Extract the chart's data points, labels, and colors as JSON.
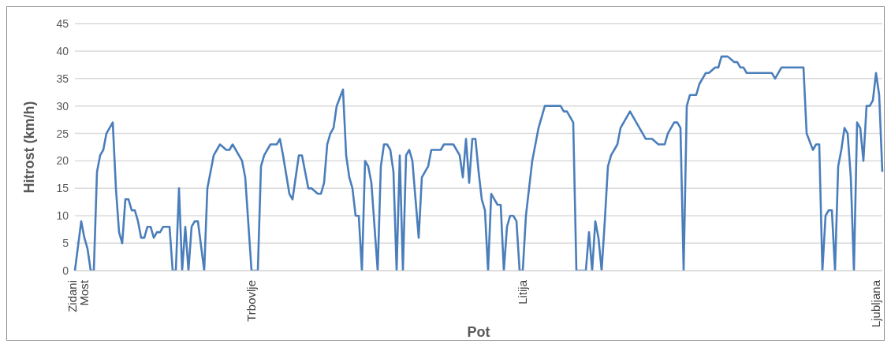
{
  "chart_data": {
    "type": "line",
    "xlabel": "Pot",
    "ylabel": "Hitrost (km/h)",
    "categories": [
      null,
      "Zidani Most",
      null,
      null,
      null,
      null,
      null,
      null,
      null,
      null,
      null,
      null,
      null,
      null,
      null,
      null,
      null,
      null,
      null,
      null,
      null,
      null,
      null,
      null,
      null,
      null,
      null,
      null,
      null,
      null,
      null,
      null,
      null,
      null,
      null,
      null,
      null,
      null,
      null,
      null,
      null,
      null,
      null,
      null,
      null,
      null,
      null,
      null,
      null,
      null,
      null,
      null,
      null,
      null,
      null,
      null,
      "Trbovlje",
      null,
      null,
      null,
      null,
      null,
      null,
      null,
      null,
      null,
      null,
      null,
      null,
      null,
      null,
      null,
      null,
      null,
      null,
      null,
      null,
      null,
      null,
      null,
      null,
      null,
      null,
      null,
      null,
      null,
      null,
      null,
      null,
      null,
      null,
      null,
      null,
      null,
      null,
      null,
      null,
      null,
      null,
      null,
      null,
      null,
      null,
      null,
      null,
      null,
      null,
      null,
      null,
      null,
      null,
      null,
      null,
      null,
      null,
      null,
      null,
      null,
      null,
      null,
      null,
      null,
      null,
      null,
      null,
      null,
      null,
      null,
      null,
      null,
      null,
      null,
      null,
      null,
      null,
      null,
      null,
      null,
      null,
      null,
      null,
      null,
      "Litija",
      null,
      null,
      null,
      null,
      null,
      null,
      null,
      null,
      null,
      null,
      null,
      null,
      null,
      null,
      null,
      null,
      null,
      null,
      null,
      null,
      null,
      null,
      null,
      null,
      null,
      null,
      null,
      null,
      null,
      null,
      null,
      null,
      null,
      null,
      null,
      null,
      null,
      null,
      null,
      null,
      null,
      null,
      null,
      null,
      null,
      null,
      null,
      null,
      null,
      null,
      null,
      null,
      null,
      null,
      null,
      null,
      null,
      null,
      null,
      null,
      null,
      null,
      null,
      null,
      null,
      null,
      null,
      null,
      null,
      null,
      null,
      null,
      null,
      null,
      null,
      null,
      null,
      null,
      null,
      null,
      null,
      null,
      null,
      null,
      null,
      null,
      null,
      null,
      null,
      null,
      null,
      null,
      null,
      null,
      null,
      null,
      null,
      null,
      null,
      null,
      null,
      null,
      null,
      null,
      null,
      null,
      null,
      null,
      null,
      null,
      null,
      "Ljubljana",
      null,
      null
    ],
    "values": [
      0,
      null,
      9,
      6,
      4,
      0,
      0,
      18,
      21,
      22,
      25,
      null,
      27,
      15,
      7,
      5,
      13,
      13,
      11,
      11,
      9,
      6,
      6,
      8,
      8,
      6,
      7,
      7,
      8,
      null,
      8,
      0,
      0,
      15,
      0,
      8,
      0,
      8,
      9,
      9,
      null,
      0,
      15,
      18,
      21,
      null,
      23,
      null,
      22,
      22,
      23,
      null,
      21,
      20,
      17,
      null,
      0,
      null,
      0,
      19,
      21,
      null,
      23,
      null,
      23,
      24,
      21,
      null,
      14,
      13,
      null,
      21,
      21,
      null,
      15,
      15,
      null,
      14,
      14,
      16,
      23,
      25,
      26,
      30,
      null,
      33,
      21,
      17,
      15,
      10,
      10,
      0,
      20,
      19,
      16,
      null,
      0,
      19,
      23,
      23,
      22,
      18,
      0,
      21,
      0,
      21,
      22,
      20,
      null,
      6,
      17,
      null,
      19,
      22,
      null,
      null,
      22,
      23,
      null,
      null,
      23,
      null,
      21,
      17,
      24,
      16,
      24,
      24,
      18,
      13,
      11,
      0,
      14,
      13,
      12,
      12,
      0,
      8,
      10,
      10,
      9,
      0,
      0,
      10,
      15,
      20,
      null,
      26,
      null,
      30,
      null,
      null,
      null,
      null,
      30,
      29,
      29,
      null,
      27,
      0,
      null,
      null,
      0,
      7,
      0,
      9,
      6,
      0,
      9,
      19,
      21,
      null,
      23,
      26,
      null,
      null,
      29,
      null,
      null,
      null,
      null,
      24,
      null,
      24,
      null,
      23,
      null,
      23,
      25,
      26,
      27,
      27,
      26,
      0,
      30,
      32,
      null,
      32,
      34,
      null,
      36,
      36,
      null,
      37,
      37,
      39,
      null,
      39,
      null,
      38,
      38,
      37,
      37,
      36,
      null,
      null,
      null,
      null,
      null,
      null,
      null,
      36,
      35,
      null,
      37,
      null,
      null,
      null,
      null,
      null,
      null,
      37,
      25,
      null,
      22,
      23,
      23,
      0,
      10,
      11,
      11,
      0,
      19,
      22,
      26,
      25,
      17,
      0,
      27,
      26,
      20,
      30,
      30,
      31,
      36,
      32,
      18
    ],
    "color": "#4a7ebb",
    "ylim": [
      0,
      45
    ],
    "yticks": [
      0,
      5,
      10,
      15,
      20,
      25,
      30,
      35,
      40,
      45
    ],
    "grid": "y",
    "marker": "none",
    "legend": false
  }
}
